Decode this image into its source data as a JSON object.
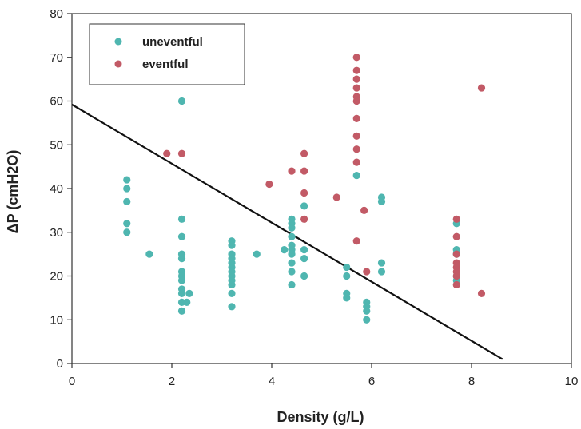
{
  "chart_data": {
    "type": "scatter",
    "title": "",
    "xlabel": "Density (g/L)",
    "ylabel": "ΔP (cmH2O)",
    "xlim": [
      0,
      10
    ],
    "ylim": [
      0,
      80
    ],
    "x_ticks": [
      "0",
      "2",
      "4",
      "6",
      "8",
      "10"
    ],
    "y_ticks": [
      "0",
      "10",
      "20",
      "30",
      "40",
      "50",
      "60",
      "70",
      "80"
    ],
    "grid": false,
    "legend_position": "top-left",
    "series": [
      {
        "name": "uneventful",
        "color": "#4fb6b0",
        "points": [
          [
            1.1,
            42
          ],
          [
            1.1,
            40
          ],
          [
            1.1,
            37
          ],
          [
            1.1,
            32
          ],
          [
            1.1,
            30
          ],
          [
            1.55,
            25
          ],
          [
            2.2,
            60
          ],
          [
            2.2,
            33
          ],
          [
            2.2,
            29
          ],
          [
            2.2,
            25
          ],
          [
            2.2,
            24
          ],
          [
            2.2,
            21
          ],
          [
            2.2,
            20
          ],
          [
            2.2,
            19
          ],
          [
            2.2,
            17
          ],
          [
            2.2,
            16
          ],
          [
            2.2,
            14
          ],
          [
            2.2,
            12
          ],
          [
            2.3,
            14
          ],
          [
            2.35,
            16
          ],
          [
            3.2,
            28
          ],
          [
            3.2,
            27
          ],
          [
            3.2,
            25
          ],
          [
            3.2,
            24
          ],
          [
            3.2,
            23
          ],
          [
            3.2,
            22
          ],
          [
            3.2,
            21
          ],
          [
            3.2,
            20
          ],
          [
            3.2,
            19
          ],
          [
            3.2,
            18
          ],
          [
            3.2,
            16
          ],
          [
            3.2,
            13
          ],
          [
            3.7,
            25
          ],
          [
            4.25,
            26
          ],
          [
            4.4,
            33
          ],
          [
            4.4,
            32
          ],
          [
            4.4,
            31
          ],
          [
            4.4,
            29
          ],
          [
            4.4,
            27
          ],
          [
            4.4,
            26
          ],
          [
            4.4,
            25
          ],
          [
            4.4,
            23
          ],
          [
            4.4,
            21
          ],
          [
            4.4,
            18
          ],
          [
            4.65,
            36
          ],
          [
            4.65,
            26
          ],
          [
            4.65,
            24
          ],
          [
            4.65,
            20
          ],
          [
            5.5,
            22
          ],
          [
            5.5,
            20
          ],
          [
            5.5,
            16
          ],
          [
            5.5,
            15
          ],
          [
            5.7,
            43
          ],
          [
            5.9,
            14
          ],
          [
            5.9,
            13
          ],
          [
            5.9,
            12
          ],
          [
            5.9,
            10
          ],
          [
            6.2,
            38
          ],
          [
            6.2,
            37
          ],
          [
            6.2,
            23
          ],
          [
            6.2,
            21
          ],
          [
            7.7,
            32
          ],
          [
            7.7,
            26
          ],
          [
            7.7,
            25
          ],
          [
            7.7,
            20
          ],
          [
            7.7,
            19
          ]
        ]
      },
      {
        "name": "eventful",
        "color": "#c25a66",
        "points": [
          [
            1.9,
            48
          ],
          [
            2.2,
            48
          ],
          [
            3.95,
            41
          ],
          [
            4.4,
            44
          ],
          [
            4.65,
            48
          ],
          [
            4.65,
            44
          ],
          [
            4.65,
            39
          ],
          [
            4.65,
            33
          ],
          [
            5.3,
            38
          ],
          [
            5.7,
            70
          ],
          [
            5.7,
            67
          ],
          [
            5.7,
            65
          ],
          [
            5.7,
            63
          ],
          [
            5.7,
            61
          ],
          [
            5.7,
            60
          ],
          [
            5.7,
            56
          ],
          [
            5.7,
            52
          ],
          [
            5.7,
            49
          ],
          [
            5.7,
            46
          ],
          [
            5.7,
            28
          ],
          [
            5.85,
            35
          ],
          [
            5.9,
            21
          ],
          [
            7.7,
            33
          ],
          [
            7.7,
            29
          ],
          [
            7.7,
            25
          ],
          [
            7.7,
            23
          ],
          [
            7.7,
            22
          ],
          [
            7.7,
            21
          ],
          [
            7.7,
            20
          ],
          [
            7.7,
            18
          ],
          [
            8.2,
            63
          ],
          [
            8.2,
            16
          ]
        ]
      }
    ],
    "regression_line": {
      "color": "#111111",
      "points": [
        [
          0,
          59.2
        ],
        [
          8.62,
          1.0
        ]
      ]
    }
  }
}
